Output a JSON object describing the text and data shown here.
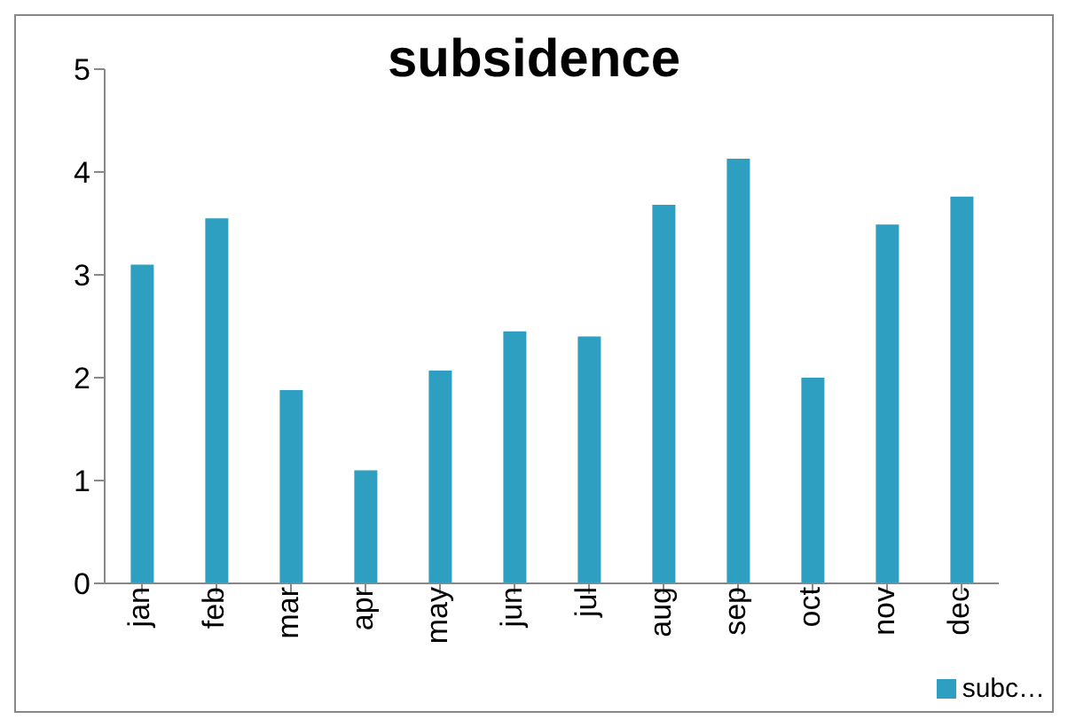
{
  "chart_data": {
    "type": "bar",
    "title": "subsidence",
    "categories": [
      "jan",
      "feb",
      "mar",
      "apr",
      "may",
      "jun",
      "jul",
      "aug",
      "sep",
      "oct",
      "nov",
      "dec"
    ],
    "series": [
      {
        "name": "subc…",
        "color": "#2e9fc0",
        "values": [
          3.1,
          3.55,
          1.88,
          1.1,
          2.07,
          2.45,
          2.4,
          3.68,
          4.13,
          2.0,
          3.49,
          3.76
        ]
      }
    ],
    "ylim": [
      0,
      5
    ],
    "yticks": [
      0,
      1,
      2,
      3,
      4,
      5
    ],
    "grid": false,
    "legend": "bottom right"
  }
}
